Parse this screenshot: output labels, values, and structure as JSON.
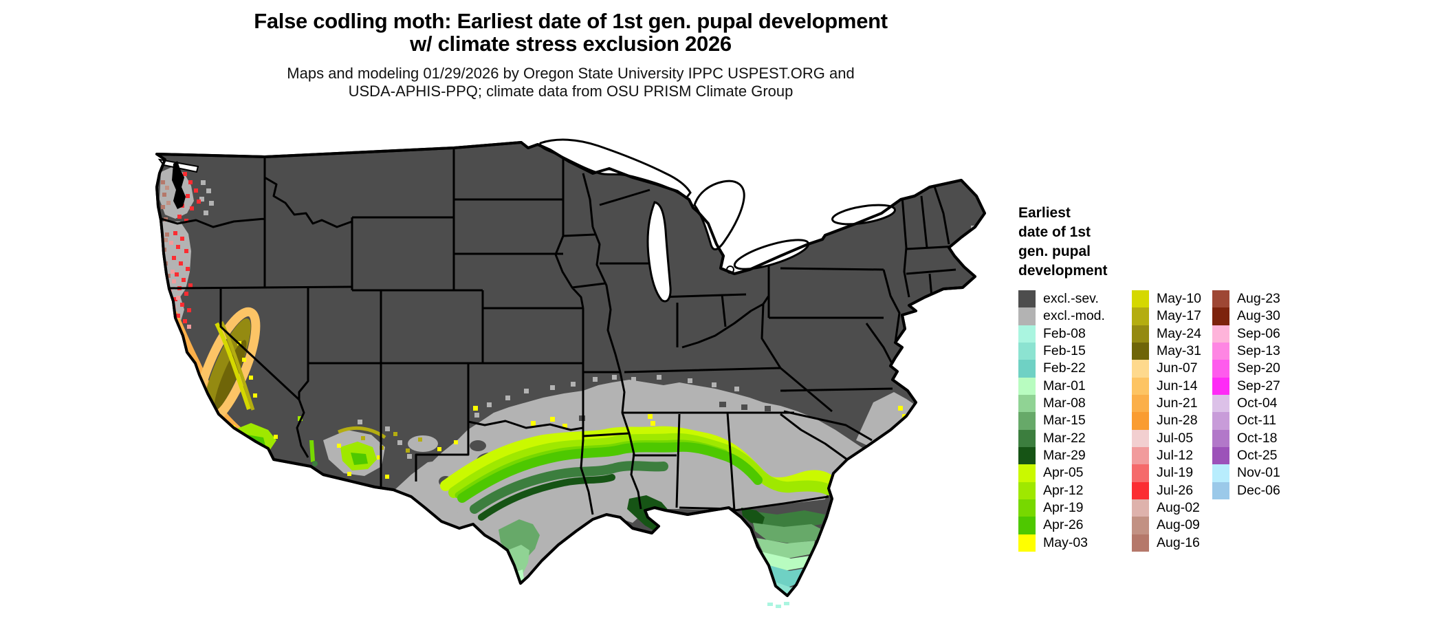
{
  "header": {
    "title_line1": "False codling moth: Earliest date of 1st gen. pupal development",
    "title_line2": "w/ climate stress exclusion 2026",
    "subtitle_line1": "Maps and modeling 01/29/2026 by Oregon State University IPPC USPEST.ORG and",
    "subtitle_line2": "USDA-APHIS-PPQ; climate data from OSU PRISM Climate Group"
  },
  "legend": {
    "title": "Earliest\ndate of 1st\ngen. pupal\ndevelopment",
    "columns": [
      [
        {
          "label": "excl.-sev.",
          "color": "#4d4d4d"
        },
        {
          "label": "excl.-mod.",
          "color": "#b3b3b3"
        },
        {
          "label": "Feb-08",
          "color": "#aaf5e0"
        },
        {
          "label": "Feb-15",
          "color": "#8ce3d1"
        },
        {
          "label": "Feb-22",
          "color": "#6fd1c4"
        },
        {
          "label": "Mar-01",
          "color": "#b8fcc0"
        },
        {
          "label": "Mar-08",
          "color": "#90d394"
        },
        {
          "label": "Mar-15",
          "color": "#67a969"
        },
        {
          "label": "Mar-22",
          "color": "#3c7e3e"
        },
        {
          "label": "Mar-29",
          "color": "#165415"
        },
        {
          "label": "Apr-05",
          "color": "#caf900"
        },
        {
          "label": "Apr-12",
          "color": "#9fe800"
        },
        {
          "label": "Apr-19",
          "color": "#77d800"
        },
        {
          "label": "Apr-26",
          "color": "#4ec800"
        },
        {
          "label": "May-03",
          "color": "#ffff00"
        }
      ],
      [
        {
          "label": "May-10",
          "color": "#d5d800"
        },
        {
          "label": "May-17",
          "color": "#b4ad10"
        },
        {
          "label": "May-24",
          "color": "#948a11"
        },
        {
          "label": "May-31",
          "color": "#6f6508"
        },
        {
          "label": "Jun-07",
          "color": "#fed98d"
        },
        {
          "label": "Jun-14",
          "color": "#fdc463"
        },
        {
          "label": "Jun-21",
          "color": "#fbaf49"
        },
        {
          "label": "Jun-28",
          "color": "#fa9c31"
        },
        {
          "label": "Jul-05",
          "color": "#f2cfd0"
        },
        {
          "label": "Jul-12",
          "color": "#f19b9c"
        },
        {
          "label": "Jul-19",
          "color": "#f56a6b"
        },
        {
          "label": "Jul-26",
          "color": "#fb2d32"
        },
        {
          "label": "Aug-02",
          "color": "#deb2ac"
        },
        {
          "label": "Aug-09",
          "color": "#c29183"
        },
        {
          "label": "Aug-16",
          "color": "#b5786a"
        }
      ],
      [
        {
          "label": "Aug-23",
          "color": "#9e4734"
        },
        {
          "label": "Aug-30",
          "color": "#7d230d"
        },
        {
          "label": "Sep-06",
          "color": "#feb4da"
        },
        {
          "label": "Sep-13",
          "color": "#fe86e3"
        },
        {
          "label": "Sep-20",
          "color": "#fe5bed"
        },
        {
          "label": "Sep-27",
          "color": "#fe2bf6"
        },
        {
          "label": "Oct-04",
          "color": "#dcc1e8"
        },
        {
          "label": "Oct-11",
          "color": "#c89cd9"
        },
        {
          "label": "Oct-18",
          "color": "#b278c9"
        },
        {
          "label": "Oct-25",
          "color": "#9c52b9"
        },
        {
          "label": "Nov-01",
          "color": "#b8edfd"
        },
        {
          "label": "Dec-06",
          "color": "#9bc9e9"
        }
      ]
    ]
  }
}
